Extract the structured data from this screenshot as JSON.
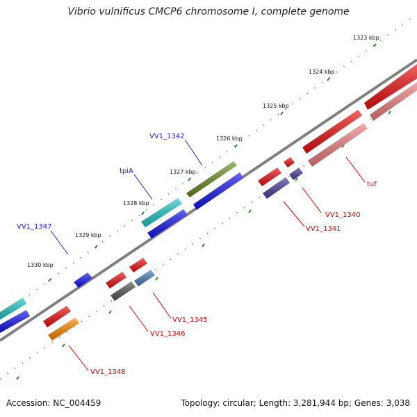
{
  "title": "Vibrio vulnificus CMCP6 chromosome I, complete genome",
  "footer": {
    "accession": "Accession: NC_004459",
    "summary": "Topology: circular; Length: 3,281,944 bp; Genes: 3,038"
  },
  "colors": {
    "backbone": "#808080",
    "tick_outer": "#2a8a2a",
    "label_blue": "#1a1acc",
    "label_red": "#cc0000",
    "leader": "#2222dd",
    "leader_red": "#dd0000"
  },
  "ticks": [
    "1323 kbp",
    "1324 kbp",
    "1325 kbp",
    "1326 kbp",
    "1327 kbp",
    "1328 kbp",
    "1329 kbp",
    "1330 kbp"
  ],
  "genes_top": [
    {
      "label": "VV1_1342",
      "color": "#6b8e23"
    },
    {
      "label": "tpiA",
      "color": "#22c7c7"
    },
    {
      "label": "VV1_1347",
      "color": "#1515ee"
    }
  ],
  "genes_bottom": [
    {
      "label": "tuf",
      "color": "#ee1111"
    },
    {
      "label": "VV1_1340",
      "color": "#ee1111"
    },
    {
      "label": "VV1_1341",
      "color": "#4b3f9a"
    },
    {
      "label": "VV1_1345",
      "color": "#4a7fb8"
    },
    {
      "label": "VV1_1346",
      "color": "#555555"
    },
    {
      "label": "VV1_1348",
      "color": "#ff8800"
    }
  ]
}
